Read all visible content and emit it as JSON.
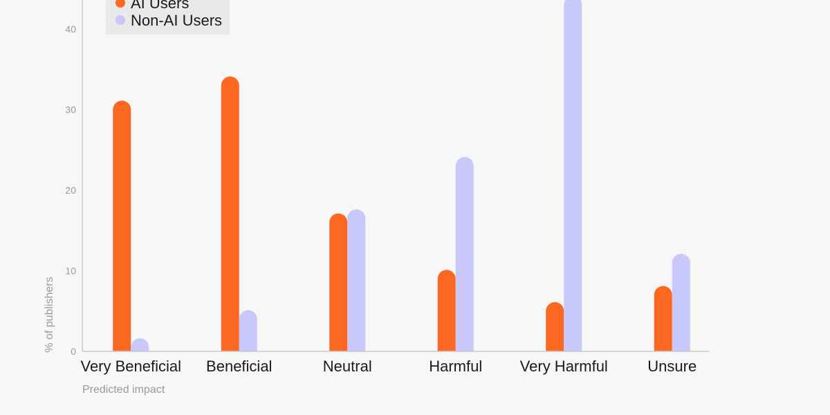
{
  "chart_data": {
    "type": "bar",
    "title": "",
    "xlabel": "Predicted impact",
    "ylabel": "% of publishers",
    "ylim": [
      0,
      44
    ],
    "yticks": [
      0,
      10,
      20,
      30,
      40
    ],
    "categories": [
      "Very Beneficial",
      "Beneficial",
      "Neutral",
      "Harmful",
      "Very Harmful",
      "Unsure"
    ],
    "series": [
      {
        "name": "AI Users",
        "color": "#fc6721",
        "values": [
          30,
          33,
          16,
          9,
          5,
          7
        ]
      },
      {
        "name": "Non-AI Users",
        "color": "#c8c8fa",
        "values": [
          0.5,
          4,
          16.5,
          23,
          43,
          11
        ]
      }
    ],
    "legend": {
      "position": "top-left"
    }
  }
}
